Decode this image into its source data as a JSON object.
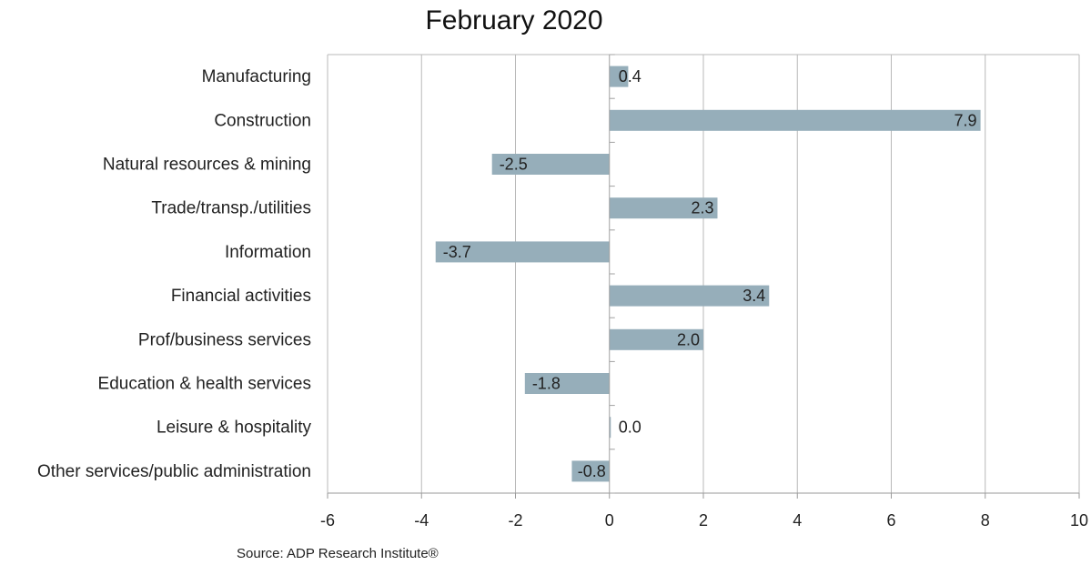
{
  "chart_data": {
    "type": "bar",
    "orientation": "horizontal",
    "title": "February 2020",
    "categories": [
      "Manufacturing",
      "Construction",
      "Natural resources & mining",
      "Trade/transp./utilities",
      "Information",
      "Financial activities",
      "Prof/business services",
      "Education & health services",
      "Leisure & hospitality",
      "Other services/public administration"
    ],
    "values": [
      0.4,
      7.9,
      -2.5,
      2.3,
      -3.7,
      3.4,
      2.0,
      -1.8,
      0.0,
      -0.8
    ],
    "data_labels": [
      "0.4",
      "7.9",
      "-2.5",
      "2.3",
      "-3.7",
      "3.4",
      "2.0",
      "-1.8",
      "0.0",
      "-0.8"
    ],
    "xlim": [
      -6,
      10
    ],
    "xticks": [
      "-6",
      "-4",
      "-2",
      "0",
      "2",
      "4",
      "6",
      "8",
      "10"
    ],
    "xlabel": "",
    "ylabel": "",
    "grid": "vertical",
    "legend": "none",
    "bar_color": "#96aeba",
    "grid_color": "#b8b8b8"
  },
  "source": "Source: ADP Research Institute®"
}
